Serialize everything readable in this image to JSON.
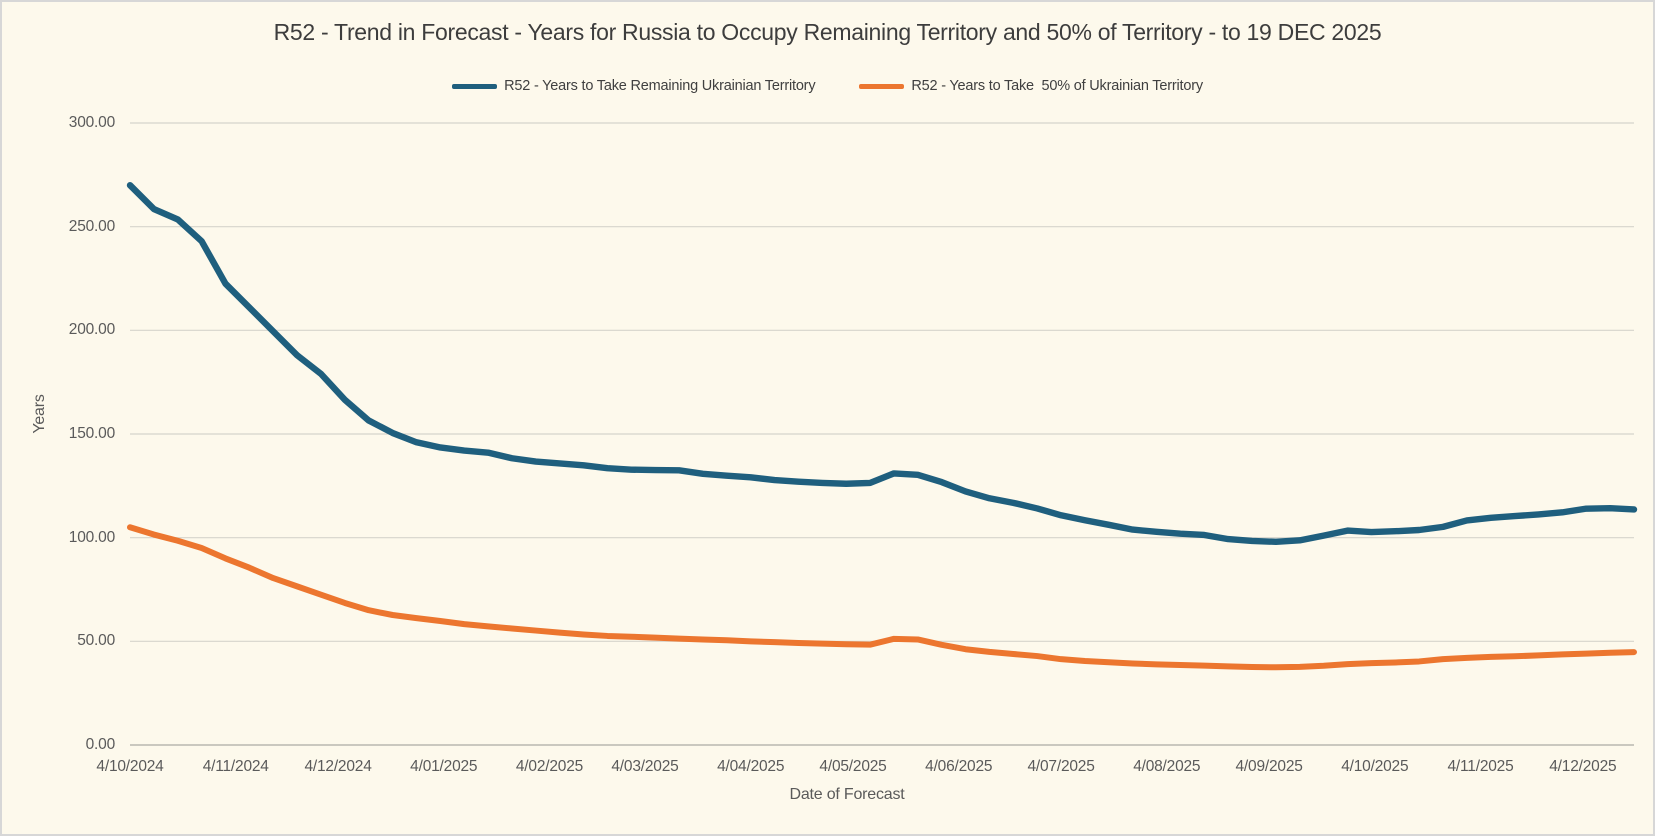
{
  "window": {
    "background_color": "#fdf9ec",
    "border_color": "#d7d7d7"
  },
  "chart": {
    "title": "R52 - Trend in Forecast - Years for Russia to Occupy Remaining Territory and 50% of Territory - to 19 DEC 2025",
    "x_axis_title": "Date of Forecast",
    "y_axis_title": "Years"
  },
  "chart_data": {
    "type": "line",
    "title": "R52 - Trend in Forecast - Years for Russia to Occupy Remaining Territory and 50% of Territory - to 19 DEC 2025",
    "xlabel": "Date of Forecast",
    "ylabel": "Years",
    "ylim": [
      0,
      300
    ],
    "ytick_step": 50,
    "grid": "horizontal",
    "grid_color": "#d6d4cc",
    "axis_line_color": "#b9b7b0",
    "legend_position": "top",
    "y_tick_labels": [
      "0.00",
      "50.00",
      "100.00",
      "150.00",
      "200.00",
      "250.00",
      "300.00"
    ],
    "x_tick_labels": [
      "4/10/2024",
      "4/11/2024",
      "4/12/2024",
      "4/01/2025",
      "4/02/2025",
      "4/03/2025",
      "4/04/2025",
      "4/05/2025",
      "4/06/2025",
      "4/07/2025",
      "4/08/2025",
      "4/09/2025",
      "4/10/2025",
      "4/11/2025",
      "4/12/2025"
    ],
    "x_tick_day_offsets": [
      0,
      31,
      61,
      92,
      123,
      151,
      182,
      212,
      243,
      273,
      304,
      334,
      365,
      396,
      426
    ],
    "total_days": 441,
    "point_interval_days": 7,
    "x": [
      "4/10/2024",
      "11/10/2024",
      "18/10/2024",
      "25/10/2024",
      "1/11/2024",
      "8/11/2024",
      "15/11/2024",
      "22/11/2024",
      "29/11/2024",
      "6/12/2024",
      "13/12/2024",
      "20/12/2024",
      "27/12/2024",
      "3/01/2025",
      "10/01/2025",
      "17/01/2025",
      "24/01/2025",
      "31/01/2025",
      "7/02/2025",
      "14/02/2025",
      "21/02/2025",
      "28/02/2025",
      "7/03/2025",
      "14/03/2025",
      "21/03/2025",
      "28/03/2025",
      "4/04/2025",
      "11/04/2025",
      "18/04/2025",
      "25/04/2025",
      "2/05/2025",
      "9/05/2025",
      "16/05/2025",
      "23/05/2025",
      "30/05/2025",
      "6/06/2025",
      "13/06/2025",
      "20/06/2025",
      "27/06/2025",
      "4/07/2025",
      "11/07/2025",
      "18/07/2025",
      "25/07/2025",
      "1/08/2025",
      "8/08/2025",
      "15/08/2025",
      "22/08/2025",
      "29/08/2025",
      "5/09/2025",
      "12/09/2025",
      "19/09/2025",
      "26/09/2025",
      "3/10/2025",
      "10/10/2025",
      "17/10/2025",
      "24/10/2025",
      "31/10/2025",
      "7/11/2025",
      "14/11/2025",
      "21/11/2025",
      "28/11/2025",
      "5/12/2025",
      "12/12/2025",
      "19/12/2025"
    ],
    "series": [
      {
        "name": "R52 - Years to Take Remaining Ukrainian Territory",
        "color": "#1f5f7e",
        "stroke_width": 6.4,
        "values": [
          270,
          258.5,
          253.5,
          243,
          222.5,
          211,
          199.5,
          188,
          179,
          166.5,
          156.5,
          150.5,
          146,
          143.5,
          142,
          141,
          138.3,
          136.7,
          135.8,
          134.9,
          133.5,
          132.8,
          132.6,
          132.5,
          130.8,
          129.9,
          129.1,
          127.8,
          127.0,
          126.4,
          126.0,
          126.4,
          131.0,
          130.3,
          126.8,
          122.3,
          119.0,
          116.8,
          114.1,
          110.8,
          108.4,
          106.2,
          103.9,
          102.8,
          101.9,
          101.3,
          99.3,
          98.4,
          98.0,
          98.7,
          101.0,
          103.4,
          102.7,
          103.1,
          103.7,
          105.2,
          108.3,
          109.6,
          110.4,
          111.2,
          112.2,
          114.0,
          114.2,
          113.6
        ]
      },
      {
        "name": "R52 - Years to Take  50% of Ukrainian Territory",
        "color": "#ec762f",
        "stroke_width": 6.0,
        "values": [
          105,
          101.5,
          98.5,
          95,
          90,
          85.5,
          80.5,
          76.5,
          72.5,
          68.5,
          65,
          62.7,
          61.2,
          59.8,
          58.3,
          57.2,
          56.2,
          55.2,
          54.2,
          53.3,
          52.6,
          52.2,
          51.8,
          51.3,
          50.9,
          50.5,
          50.0,
          49.6,
          49.2,
          48.9,
          48.6,
          48.4,
          51.2,
          50.9,
          48.3,
          46.2,
          44.9,
          43.9,
          42.9,
          41.4,
          40.5,
          39.9,
          39.3,
          38.9,
          38.6,
          38.3,
          37.9,
          37.6,
          37.5,
          37.7,
          38.2,
          39.0,
          39.5,
          39.8,
          40.3,
          41.4,
          42.0,
          42.5,
          42.8,
          43.2,
          43.7,
          44.1,
          44.5,
          44.8
        ]
      }
    ]
  }
}
